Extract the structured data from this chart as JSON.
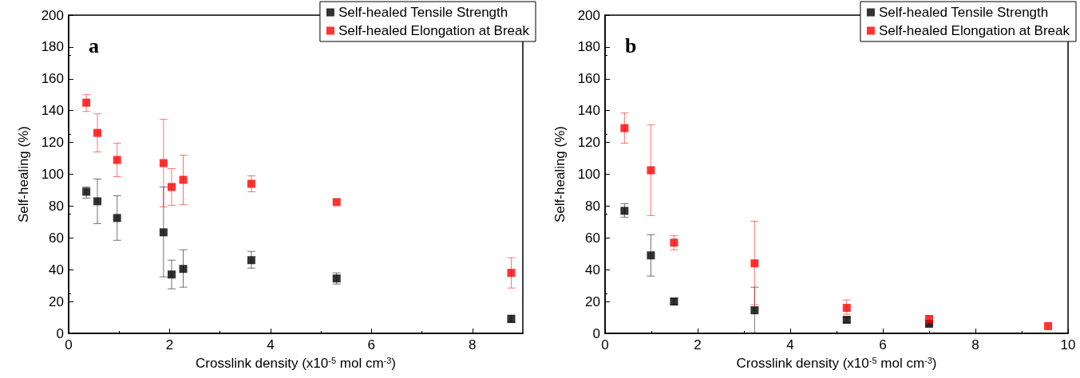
{
  "chart_data": [
    {
      "type": "scatter",
      "xlabel": "Crosslink density (x10$^{-5}$ mol cm$^{-3}$)",
      "ylabel": "Self-healing (%)",
      "annotations": [
        "a"
      ],
      "xlim": [
        0,
        9
      ],
      "xticks": [
        0,
        2,
        4,
        6,
        8
      ],
      "ylim": [
        0,
        200
      ],
      "yticks": [
        0,
        20,
        40,
        60,
        80,
        100,
        120,
        140,
        160,
        180,
        200
      ],
      "grid": false,
      "legend": "top right",
      "marker": "square",
      "x": [
        0.35,
        0.57,
        0.96,
        1.88,
        2.04,
        2.27,
        3.62,
        5.31,
        8.77
      ],
      "series": [
        {
          "name": "Self-healed Tensile Strength",
          "color": "#000000",
          "values": [
            89,
            83,
            72.5,
            63.5,
            37,
            40.5,
            46,
            34.5,
            9
          ],
          "errors": [
            [
              85,
              92
            ],
            [
              69,
              97
            ],
            [
              58.5,
              86.5
            ],
            [
              35.5,
              92
            ],
            [
              28,
              46
            ],
            [
              29,
              52.5
            ],
            [
              41,
              51.5
            ],
            [
              31,
              38
            ],
            [
              7,
              11.5
            ]
          ]
        },
        {
          "name": "Self-healed Elongation at Break",
          "color": "#ff0000",
          "values": [
            145,
            126,
            109,
            107,
            92,
            96.5,
            94,
            82.5,
            38
          ],
          "errors": [
            [
              139.5,
              150
            ],
            [
              114,
              138
            ],
            [
              98.5,
              119.5
            ],
            [
              79.5,
              134.5
            ],
            [
              80.5,
              103.5
            ],
            [
              81,
              112
            ],
            [
              89,
              99
            ],
            null,
            [
              28.5,
              47.5
            ]
          ]
        }
      ]
    },
    {
      "type": "scatter",
      "xlabel": "Crosslink density (x10$^{-5}$ mol cm$^{-3}$)",
      "ylabel": "Self-healing (%)",
      "annotations": [
        "b"
      ],
      "xlim": [
        0,
        10
      ],
      "xticks": [
        0,
        2,
        4,
        6,
        8,
        10
      ],
      "ylim": [
        0,
        200
      ],
      "yticks": [
        0,
        20,
        40,
        60,
        80,
        100,
        120,
        140,
        160,
        180,
        200
      ],
      "grid": false,
      "legend": "top right",
      "marker": "square",
      "x": [
        0.42,
        0.99,
        1.49,
        3.23,
        5.22,
        7.0,
        9.57
      ],
      "series": [
        {
          "name": "Self-healed Tensile Strength",
          "color": "#000000",
          "values": [
            77,
            49,
            20,
            14.5,
            8.5,
            6,
            null
          ],
          "errors": [
            [
              73,
              81.5
            ],
            [
              36,
              62
            ],
            [
              18,
              22
            ],
            [
              0,
              29
            ],
            [
              7,
              10
            ],
            [
              5,
              7.5
            ],
            null
          ]
        },
        {
          "name": "Self-healed Elongation at Break",
          "color": "#ff0000",
          "values": [
            129,
            102.5,
            57,
            44,
            16,
            9,
            4.5
          ],
          "errors": [
            [
              119.5,
              138.5
            ],
            [
              74,
              131
            ],
            [
              52.5,
              61.5
            ],
            [
              18,
              70.5
            ],
            [
              12,
              21
            ],
            [
              7,
              11
            ],
            null
          ]
        }
      ]
    }
  ]
}
